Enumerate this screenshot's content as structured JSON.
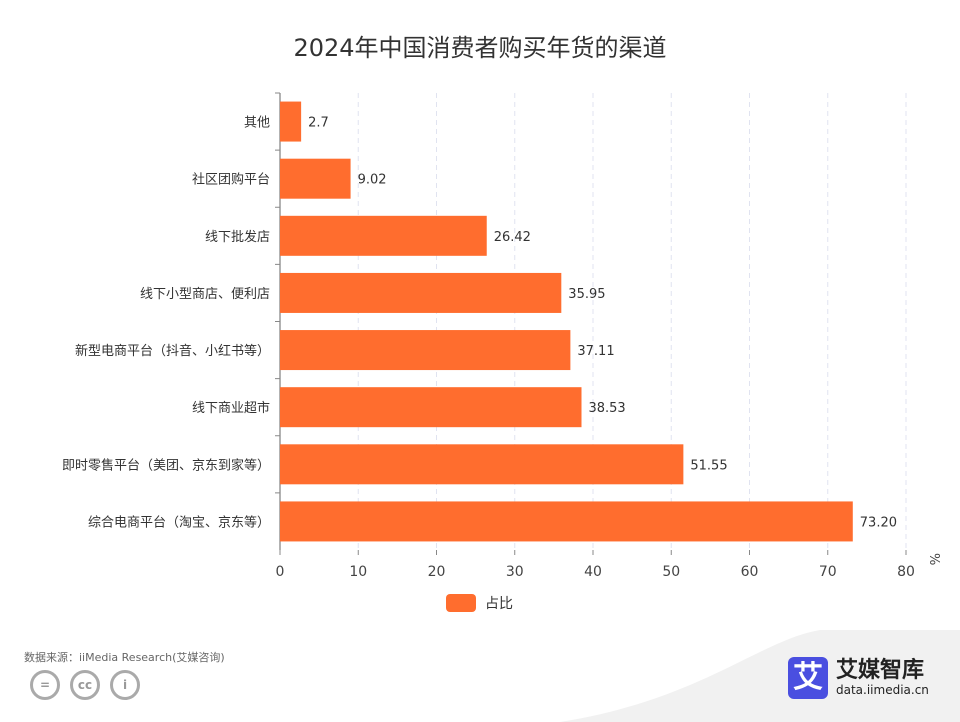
{
  "chart_data": {
    "type": "bar",
    "orientation": "horizontal",
    "title": "2024年中国消费者购买年货的渠道",
    "categories": [
      "其他",
      "社区团购平台",
      "线下批发店",
      "线下小型商店、便利店",
      "新型电商平台（抖音、小红书等）",
      "线下商业超市",
      "即时零售平台（美团、京东到家等）",
      "综合电商平台（淘宝、京东等）"
    ],
    "series": [
      {
        "name": "占比",
        "values": [
          2.7,
          9.02,
          26.42,
          35.95,
          37.11,
          38.53,
          51.55,
          73.2
        ],
        "labels": [
          "2.7",
          "9.02",
          "26.42",
          "35.95",
          "37.11",
          "38.53",
          "51.55",
          "73.20"
        ],
        "color": "#ff6d2e"
      }
    ],
    "xlim": [
      0,
      80
    ],
    "xticks": [
      "0",
      "10",
      "20",
      "30",
      "40",
      "50",
      "60",
      "70",
      "80"
    ],
    "xunit": "%",
    "grid": "vertical dashed",
    "legend": "bottom"
  },
  "footer": {
    "source": "数据来源：iiMedia Research(艾媒咨询)",
    "cc_icons": [
      "equals-icon",
      "cc-icon",
      "person-icon"
    ],
    "cc_glyphs": [
      "=",
      "cc",
      "i"
    ]
  },
  "logo": {
    "mark": "艾",
    "name": "艾媒智库",
    "url": "data.iimedia.cn"
  }
}
